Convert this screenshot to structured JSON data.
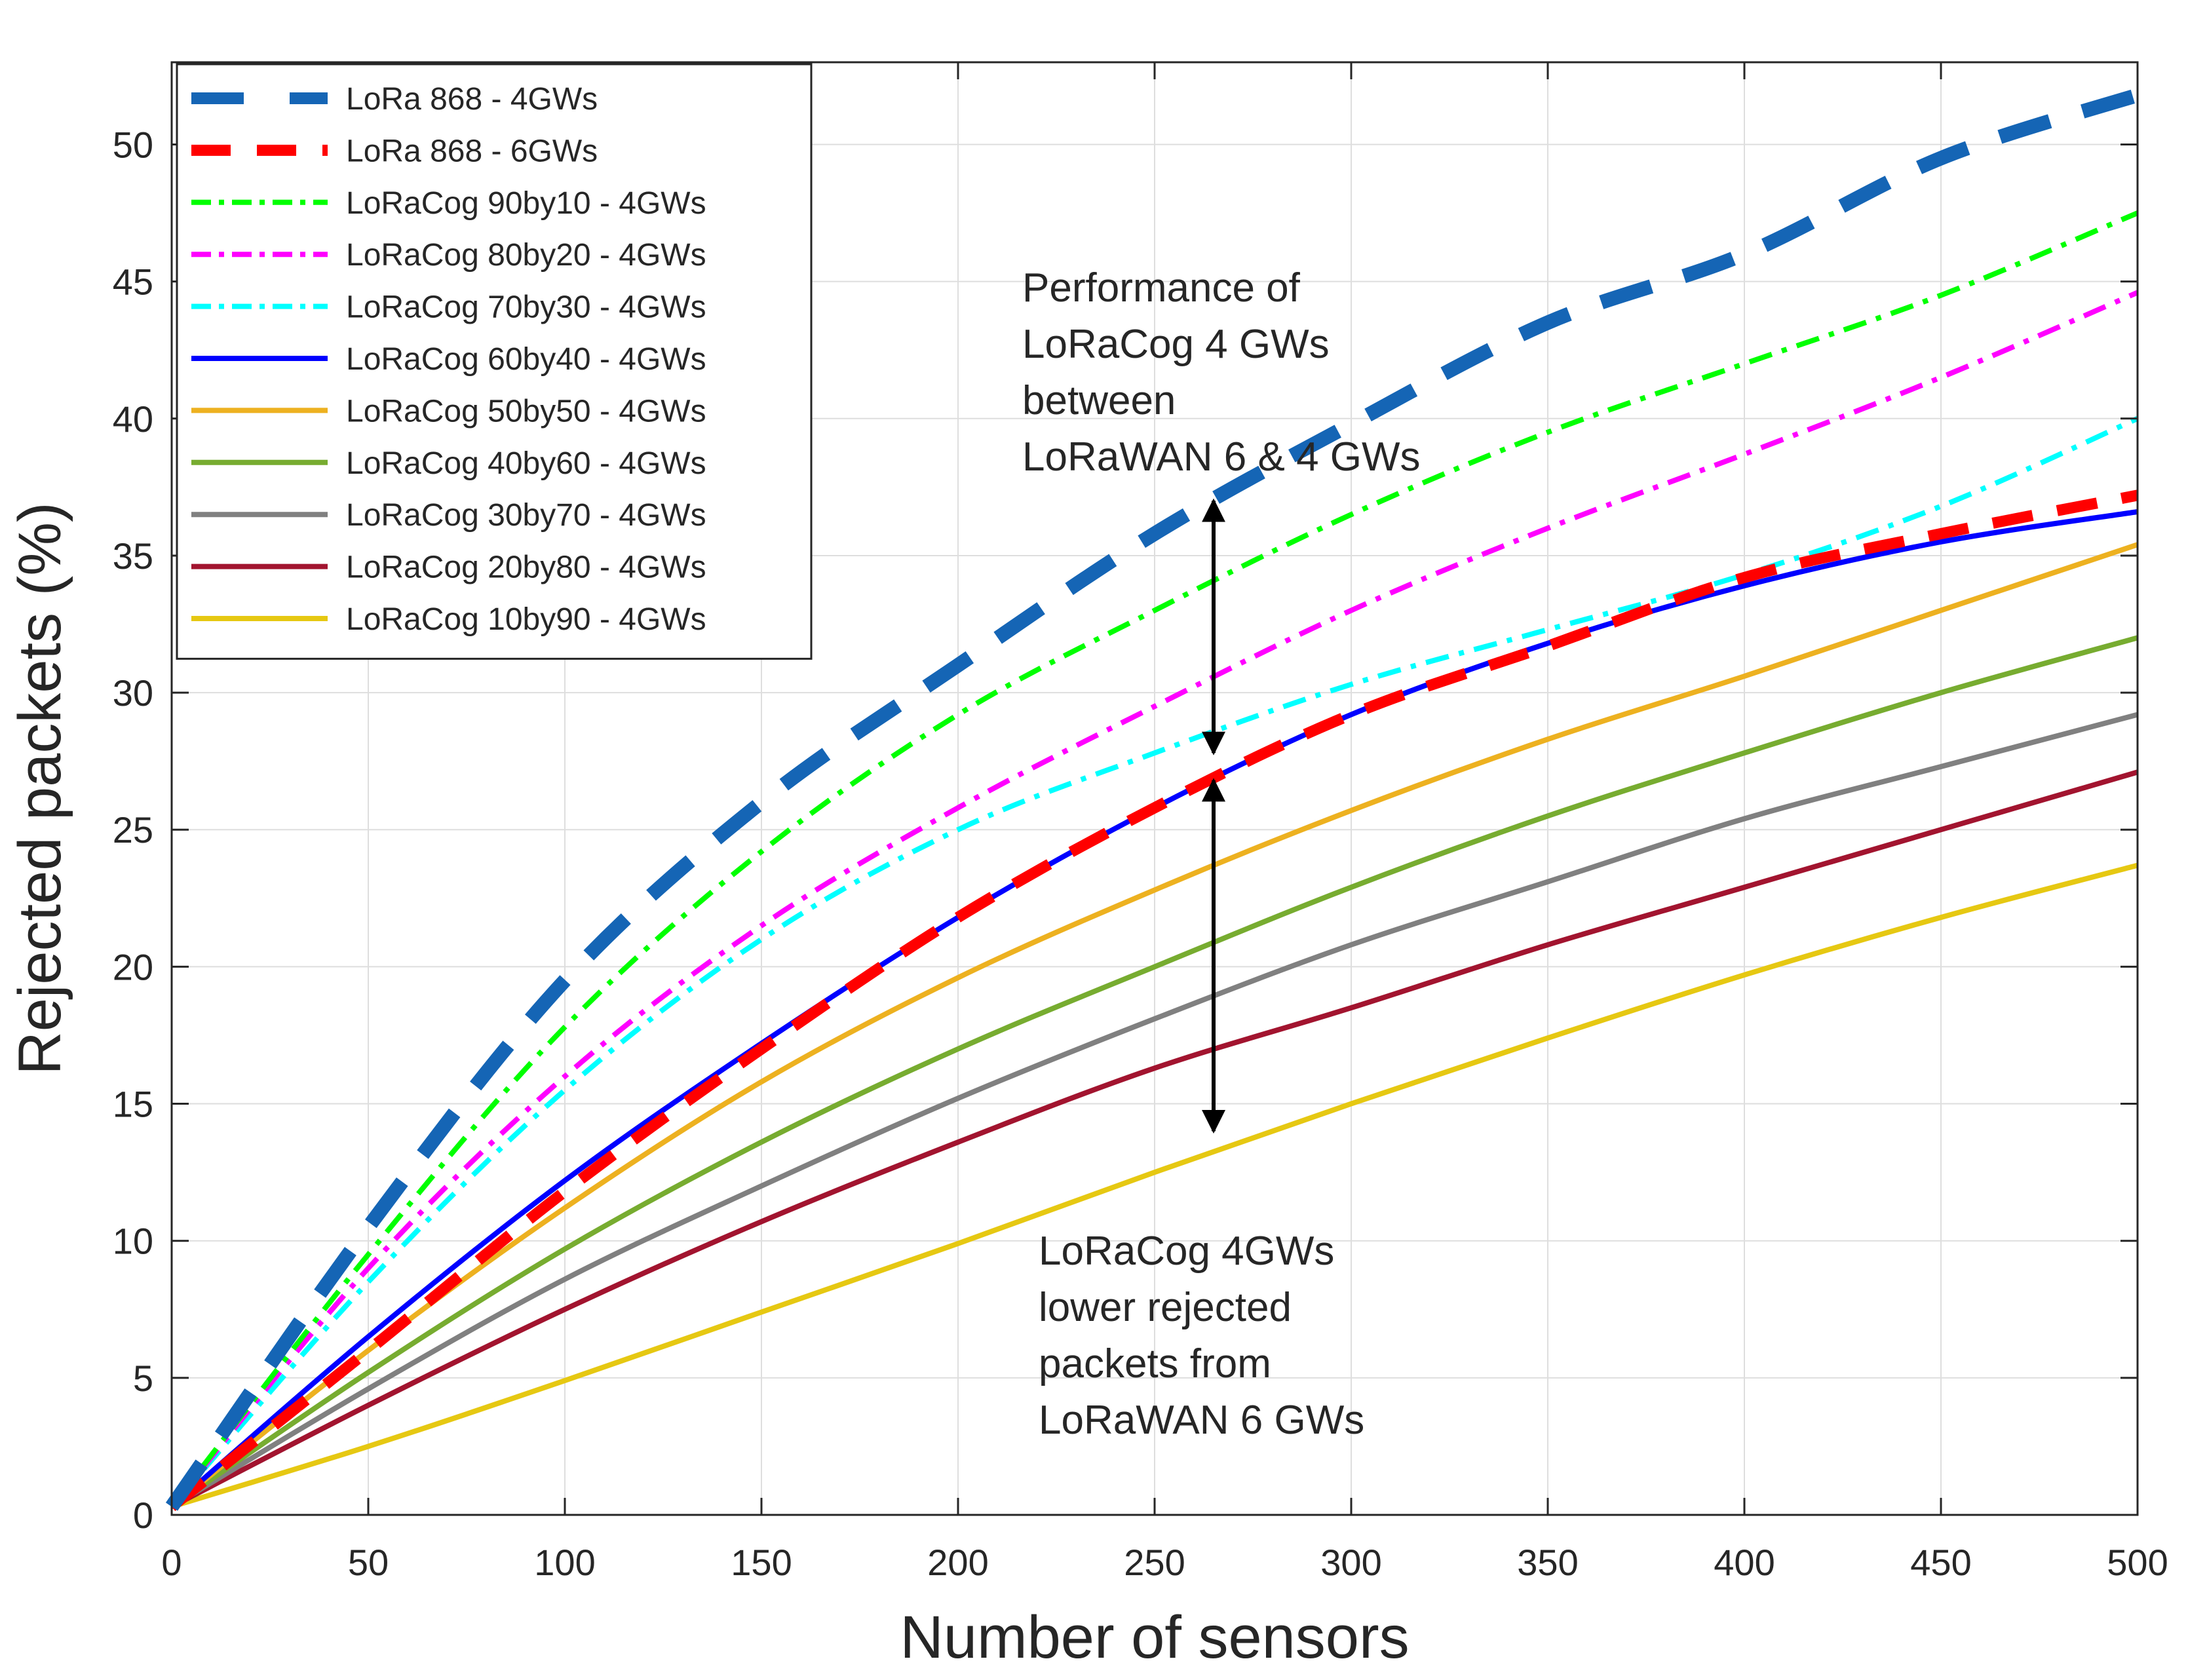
{
  "chart_data": {
    "type": "line",
    "title": "",
    "xlabel": "Number of sensors",
    "ylabel": "Rejected packets (%)",
    "xlim": [
      0,
      500
    ],
    "ylim": [
      0,
      53
    ],
    "xticks": [
      0,
      50,
      100,
      150,
      200,
      250,
      300,
      350,
      400,
      450,
      500
    ],
    "yticks": [
      0,
      5,
      10,
      15,
      20,
      25,
      30,
      35,
      40,
      45,
      50
    ],
    "grid": true,
    "legend_position": "top-left",
    "x": [
      0,
      50,
      100,
      150,
      200,
      250,
      300,
      350,
      400,
      450,
      500
    ],
    "series": [
      {
        "name": "LoRa 868 - 4GWs",
        "color": "#1565b5",
        "style": "dashed-thick",
        "values": [
          0.3,
          10.5,
          19.5,
          26.0,
          31.0,
          35.8,
          39.8,
          43.5,
          46.0,
          49.5,
          51.8
        ]
      },
      {
        "name": "LoRa 868 - 6GWs",
        "color": "#ff0000",
        "style": "dashed",
        "values": [
          0.3,
          6.0,
          11.8,
          17.0,
          21.8,
          25.8,
          29.2,
          31.7,
          34.2,
          35.8,
          37.2
        ]
      },
      {
        "name": "LoRaCog 90by10 - 4GWs",
        "color": "#00ff00",
        "style": "dashdot",
        "values": [
          0.3,
          9.5,
          17.8,
          24.2,
          29.2,
          33.0,
          36.5,
          39.5,
          42.0,
          44.5,
          47.5
        ]
      },
      {
        "name": "LoRaCog 80by20 - 4GWs",
        "color": "#ff00ff",
        "style": "dashdot",
        "values": [
          0.3,
          9.0,
          16.0,
          21.5,
          25.8,
          29.5,
          33.0,
          36.0,
          38.7,
          41.5,
          44.6
        ]
      },
      {
        "name": "LoRaCog 70by30 - 4GWs",
        "color": "#00ffff",
        "style": "dashdot",
        "values": [
          0.3,
          8.5,
          15.5,
          21.0,
          25.0,
          27.8,
          30.3,
          32.3,
          34.3,
          36.8,
          40.0
        ]
      },
      {
        "name": "LoRaCog 60by40 - 4GWs",
        "color": "#0000ff",
        "style": "solid",
        "values": [
          0.3,
          6.5,
          12.2,
          17.2,
          21.8,
          25.8,
          29.2,
          31.8,
          33.9,
          35.5,
          36.6
        ]
      },
      {
        "name": "LoRaCog 50by50 - 4GWs",
        "color": "#edb120",
        "style": "solid",
        "values": [
          0.3,
          6.0,
          11.2,
          15.8,
          19.6,
          22.8,
          25.7,
          28.3,
          30.6,
          33.0,
          35.4
        ]
      },
      {
        "name": "LoRaCog 40by60 - 4GWs",
        "color": "#77ac30",
        "style": "solid",
        "values": [
          0.3,
          5.2,
          9.7,
          13.6,
          17.0,
          20.0,
          22.9,
          25.5,
          27.8,
          30.0,
          32.0
        ]
      },
      {
        "name": "LoRaCog 30by70 - 4GWs",
        "color": "#808080",
        "style": "solid",
        "values": [
          0.3,
          4.6,
          8.6,
          12.0,
          15.2,
          18.1,
          20.8,
          23.1,
          25.4,
          27.3,
          29.2
        ]
      },
      {
        "name": "LoRaCog 20by80 - 4GWs",
        "color": "#a2142f",
        "style": "solid",
        "values": [
          0.3,
          4.0,
          7.5,
          10.7,
          13.6,
          16.3,
          18.5,
          20.8,
          22.9,
          25.0,
          27.1
        ]
      },
      {
        "name": "LoRaCog 10by90 - 4GWs",
        "color": "#e6c812",
        "style": "solid",
        "values": [
          0.3,
          2.5,
          4.9,
          7.4,
          9.9,
          12.5,
          15.0,
          17.4,
          19.7,
          21.8,
          23.7
        ]
      }
    ],
    "annotations": [
      {
        "lines": [
          "Performance of",
          "LoRaCog 4 GWs",
          "between",
          "LoRaWAN 6 & 4 GWs"
        ]
      },
      {
        "lines": [
          "LoRaCog 4GWs",
          "lower rejected",
          "packets from",
          "LoRaWAN 6 GWs"
        ]
      }
    ],
    "arrows": [
      {
        "x": 265,
        "from": 37.0,
        "to": 27.8
      },
      {
        "x": 265,
        "from": 26.8,
        "to": 14.0
      }
    ]
  }
}
